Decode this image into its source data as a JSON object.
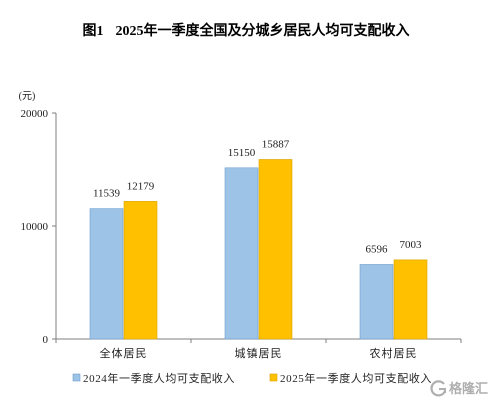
{
  "chart_data": {
    "type": "bar",
    "figure_label": "图1",
    "title": "2025年一季度全国及分城乡居民人均可支配收入",
    "ylabel": "(元)",
    "xlabel": "",
    "categories": [
      "全体居民",
      "城镇居民",
      "农村居民"
    ],
    "series": [
      {
        "name": "2024年一季度人均可支配收入",
        "values": [
          11539,
          15150,
          6596
        ],
        "color": "#9DC3E6",
        "edge": "#6F9FD0"
      },
      {
        "name": "2025年一季度人均可支配收入",
        "values": [
          12179,
          15887,
          7003
        ],
        "color": "#FFC000",
        "edge": "#D9A300"
      }
    ],
    "ylim": [
      0,
      20000
    ],
    "y_ticks": [
      0,
      10000,
      20000
    ],
    "grid": false,
    "legend": "bottom"
  },
  "watermark": {
    "text": "格隆汇",
    "icon": "gelonghui-logo-icon",
    "color": "#9A9A9A"
  },
  "colors": {
    "axis": "#7F7F7F",
    "text": "#222222"
  }
}
